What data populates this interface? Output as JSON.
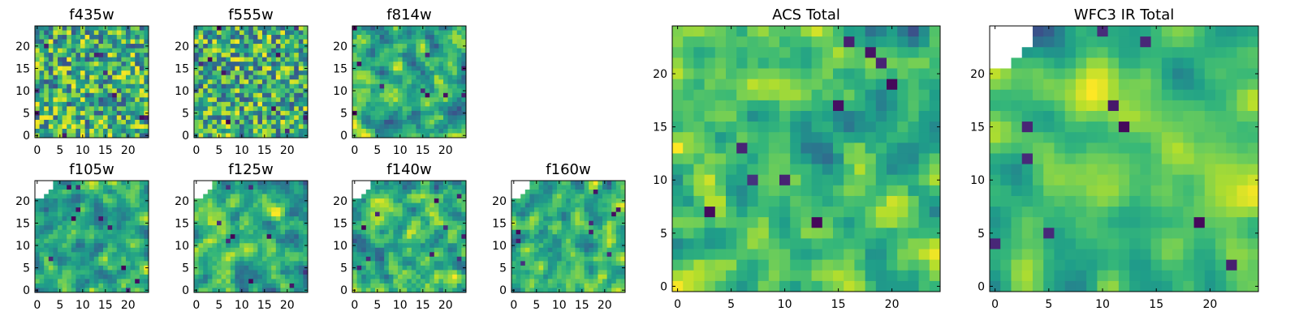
{
  "figure": {
    "panels": [
      {
        "title": "f435w",
        "xticks": [
          "0",
          "5",
          "10",
          "15",
          "20"
        ],
        "yticks": [
          "0",
          "5",
          "10",
          "15",
          "20"
        ],
        "mask": "none",
        "smooth": 0,
        "seed": 11
      },
      {
        "title": "f555w",
        "xticks": [
          "0",
          "5",
          "10",
          "15",
          "20"
        ],
        "yticks": [
          "0",
          "5",
          "10",
          "15",
          "20"
        ],
        "mask": "none",
        "smooth": 0,
        "seed": 23
      },
      {
        "title": "f814w",
        "xticks": [
          "0",
          "5",
          "10",
          "15",
          "20"
        ],
        "yticks": [
          "0",
          "5",
          "10",
          "15",
          "20"
        ],
        "mask": "none",
        "smooth": 1,
        "seed": 37
      },
      {
        "title": "f105w",
        "xticks": [
          "0",
          "5",
          "10",
          "15",
          "20"
        ],
        "yticks": [
          "0",
          "5",
          "10",
          "15",
          "20"
        ],
        "mask": "top-left",
        "smooth": 1,
        "seed": 41
      },
      {
        "title": "f125w",
        "xticks": [
          "0",
          "5",
          "10",
          "15",
          "20"
        ],
        "yticks": [
          "0",
          "5",
          "10",
          "15",
          "20"
        ],
        "mask": "top-left",
        "smooth": 1,
        "seed": 53
      },
      {
        "title": "f140w",
        "xticks": [
          "0",
          "5",
          "10",
          "15",
          "20"
        ],
        "yticks": [
          "0",
          "5",
          "10",
          "15",
          "20"
        ],
        "mask": "top-left",
        "smooth": 1,
        "seed": 67
      },
      {
        "title": "f160w",
        "xticks": [
          "0",
          "5",
          "10",
          "15",
          "20"
        ],
        "yticks": [
          "0",
          "5",
          "10",
          "15",
          "20"
        ],
        "mask": "top-left",
        "smooth": 1,
        "seed": 79
      },
      {
        "title": "ACS Total",
        "xticks": [
          "0",
          "5",
          "10",
          "15",
          "20"
        ],
        "yticks": [
          "0",
          "5",
          "10",
          "15",
          "20"
        ],
        "mask": "none",
        "smooth": 1,
        "seed": 83
      },
      {
        "title": "WFC3 IR Total",
        "xticks": [
          "0",
          "5",
          "10",
          "15",
          "20"
        ],
        "yticks": [
          "0",
          "5",
          "10",
          "15",
          "20"
        ],
        "mask": "top-left",
        "smooth": 2,
        "seed": 97
      }
    ]
  },
  "chart_data": [
    {
      "type": "heatmap",
      "title": "f435w",
      "grid_size": [
        25,
        25
      ],
      "xlim": [
        0,
        25
      ],
      "ylim": [
        0,
        25
      ],
      "colormap": "viridis"
    },
    {
      "type": "heatmap",
      "title": "f555w",
      "grid_size": [
        25,
        25
      ],
      "xlim": [
        0,
        25
      ],
      "ylim": [
        0,
        25
      ],
      "colormap": "viridis"
    },
    {
      "type": "heatmap",
      "title": "f814w",
      "grid_size": [
        25,
        25
      ],
      "xlim": [
        0,
        25
      ],
      "ylim": [
        0,
        25
      ],
      "colormap": "viridis"
    },
    {
      "type": "heatmap",
      "title": "f105w",
      "grid_size": [
        25,
        25
      ],
      "xlim": [
        0,
        25
      ],
      "ylim": [
        0,
        25
      ],
      "colormap": "viridis"
    },
    {
      "type": "heatmap",
      "title": "f125w",
      "grid_size": [
        25,
        25
      ],
      "xlim": [
        0,
        25
      ],
      "ylim": [
        0,
        25
      ],
      "colormap": "viridis"
    },
    {
      "type": "heatmap",
      "title": "f140w",
      "grid_size": [
        25,
        25
      ],
      "xlim": [
        0,
        25
      ],
      "ylim": [
        0,
        25
      ],
      "colormap": "viridis"
    },
    {
      "type": "heatmap",
      "title": "f160w",
      "grid_size": [
        25,
        25
      ],
      "xlim": [
        0,
        25
      ],
      "ylim": [
        0,
        25
      ],
      "colormap": "viridis"
    },
    {
      "type": "heatmap",
      "title": "ACS Total",
      "grid_size": [
        25,
        25
      ],
      "xlim": [
        0,
        25
      ],
      "ylim": [
        0,
        25
      ],
      "colormap": "viridis"
    },
    {
      "type": "heatmap",
      "title": "WFC3 IR Total",
      "grid_size": [
        25,
        25
      ],
      "xlim": [
        0,
        25
      ],
      "ylim": [
        0,
        25
      ],
      "colormap": "viridis"
    }
  ]
}
